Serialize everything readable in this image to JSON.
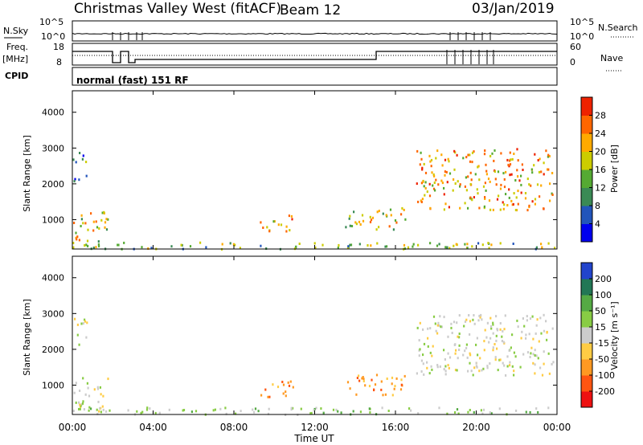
{
  "header": {
    "station_title": "Christmas Valley West (fitACF)",
    "beam_label": "Beam 12",
    "date": "03/Jan/2019"
  },
  "top_panels": {
    "nsky_label": "N.Sky",
    "nsearch_label": "N.Search",
    "freq_label_line1": "Freq.",
    "freq_label_line2": "[MHz]",
    "nave_label": "Nave",
    "cpid_label": "CPID",
    "nsky_ticks": [
      "10^5",
      "10^0"
    ],
    "nsearch_ticks": [
      "10^5",
      "10^0"
    ],
    "freq_ticks": [
      "18",
      "8"
    ],
    "nave_ticks": [
      "60",
      "0"
    ],
    "cpid_text": "normal (fast) 151 RF"
  },
  "chart_data": [
    {
      "type": "heatmap",
      "name": "power",
      "xlabel": "",
      "ylabel": "Slant Range [km]",
      "x_ticks": [
        "00:00",
        "04:00",
        "08:00",
        "12:00",
        "16:00",
        "20:00",
        "00:00"
      ],
      "xlim_hours": [
        0,
        24
      ],
      "y_ticks": [
        1000,
        2000,
        3000,
        4000
      ],
      "ylim": [
        180,
        4600
      ],
      "colorbar_label": "Power [dB]",
      "colorbar_ticks": [
        4,
        8,
        12,
        16,
        20,
        24,
        28
      ],
      "colorbar_colors": [
        "#0000ee",
        "#2255bb",
        "#3a8a55",
        "#55aa33",
        "#cccc00",
        "#ffaa00",
        "#ff6600",
        "#ee2200"
      ],
      "regions": [
        {
          "t0": 0.0,
          "t1": 0.7,
          "r0": 2100,
          "r1": 2900,
          "level": 2
        },
        {
          "t0": 0.0,
          "t1": 1.8,
          "r0": 250,
          "r1": 1250,
          "level": 4
        },
        {
          "t0": 0.0,
          "t1": 24.0,
          "r0": 200,
          "r1": 400,
          "level": 3
        },
        {
          "t0": 9.2,
          "t1": 11.0,
          "r0": 700,
          "r1": 1150,
          "level": 5
        },
        {
          "t0": 13.5,
          "t1": 16.5,
          "r0": 750,
          "r1": 1350,
          "level": 4
        },
        {
          "t0": 17.0,
          "t1": 23.8,
          "r0": 1300,
          "r1": 3000,
          "level": 5
        }
      ]
    },
    {
      "type": "heatmap",
      "name": "velocity",
      "xlabel": "Time UT",
      "ylabel": "Slant Range [km]",
      "x_ticks": [
        "00:00",
        "04:00",
        "08:00",
        "12:00",
        "16:00",
        "20:00",
        "00:00"
      ],
      "xlim_hours": [
        0,
        24
      ],
      "y_ticks": [
        1000,
        2000,
        3000,
        4000
      ],
      "ylim": [
        180,
        4600
      ],
      "colorbar_label": "Velocity [m s⁻¹]",
      "colorbar_ticks": [
        "200",
        "100",
        "50",
        "15",
        "-15",
        "-50",
        "-100",
        "-200"
      ],
      "colorbar_colors": [
        "#2244cc",
        "#227755",
        "#55aa44",
        "#88cc44",
        "#cccccc",
        "#ffcc44",
        "#ff9922",
        "#ff5511",
        "#ee1111"
      ],
      "regions": [
        {
          "t0": 0.0,
          "t1": 0.7,
          "r0": 2100,
          "r1": 2900,
          "color_index": 4
        },
        {
          "t0": 0.0,
          "t1": 1.8,
          "r0": 250,
          "r1": 1250,
          "color_index": 4
        },
        {
          "t0": 0.0,
          "t1": 24.0,
          "r0": 200,
          "r1": 400,
          "color_index": 3
        },
        {
          "t0": 9.2,
          "t1": 11.0,
          "r0": 700,
          "r1": 1150,
          "color_index": 6
        },
        {
          "t0": 13.5,
          "t1": 16.5,
          "r0": 750,
          "r1": 1350,
          "color_index": 6
        },
        {
          "t0": 17.0,
          "t1": 23.8,
          "r0": 1300,
          "r1": 3000,
          "color_index": 4
        }
      ]
    }
  ]
}
